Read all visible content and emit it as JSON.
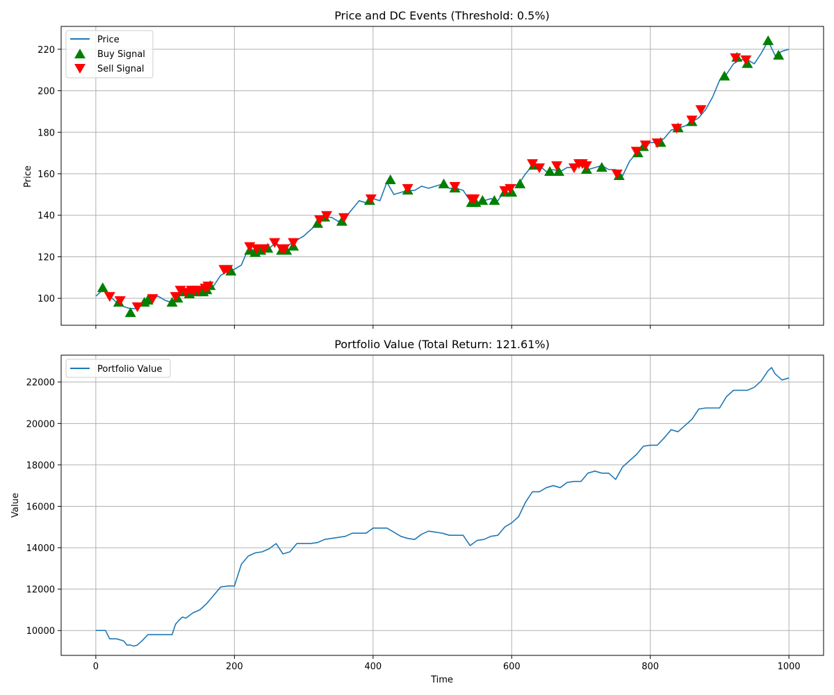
{
  "chart_data": [
    {
      "type": "line",
      "title": "Price and DC Events (Threshold: 0.5%)",
      "xlabel": "",
      "ylabel": "Price",
      "xlim": [
        -50,
        1050
      ],
      "ylim": [
        87,
        231
      ],
      "xticks": [
        0,
        200,
        400,
        600,
        800,
        1000
      ],
      "yticks": [
        100,
        120,
        140,
        160,
        180,
        200,
        220
      ],
      "show_xtick_labels": false,
      "grid": true,
      "legend": "top-left",
      "series": [
        {
          "name": "Price",
          "kind": "line",
          "color": "#1f77b4",
          "x": [
            0,
            10,
            20,
            30,
            40,
            50,
            60,
            70,
            80,
            90,
            100,
            110,
            120,
            130,
            140,
            150,
            160,
            170,
            180,
            190,
            200,
            210,
            220,
            230,
            240,
            250,
            260,
            270,
            280,
            290,
            300,
            310,
            320,
            330,
            340,
            350,
            360,
            370,
            380,
            390,
            400,
            410,
            420,
            430,
            440,
            450,
            460,
            470,
            480,
            490,
            500,
            510,
            520,
            530,
            540,
            550,
            560,
            570,
            580,
            590,
            600,
            610,
            620,
            630,
            640,
            650,
            660,
            670,
            680,
            690,
            700,
            710,
            720,
            730,
            740,
            750,
            760,
            770,
            780,
            790,
            800,
            810,
            820,
            830,
            840,
            850,
            860,
            870,
            880,
            890,
            900,
            910,
            920,
            930,
            940,
            950,
            960,
            970,
            980,
            990,
            1000
          ],
          "y": [
            101,
            104,
            101,
            98,
            96,
            95,
            95,
            98,
            100,
            101,
            99,
            98,
            101,
            103,
            103,
            102,
            104,
            106,
            111,
            113,
            114,
            116,
            124,
            123,
            124,
            124,
            127,
            123,
            126,
            128,
            130,
            133,
            136,
            139,
            139,
            137,
            139,
            143,
            147,
            146,
            148,
            147,
            156,
            150,
            151,
            152,
            152,
            154,
            153,
            154,
            155,
            153,
            153,
            152,
            147,
            146,
            147,
            148,
            147,
            152,
            154,
            155,
            160,
            164,
            164,
            161,
            162,
            161,
            163,
            163,
            164,
            162,
            163,
            164,
            162,
            162,
            159,
            166,
            170,
            173,
            175,
            175,
            177,
            181,
            182,
            183,
            185,
            187,
            191,
            197,
            205,
            208,
            213,
            215,
            215,
            213,
            218,
            224,
            217,
            219,
            220
          ]
        },
        {
          "name": "Buy Signal",
          "kind": "marker",
          "marker": "triangle-up",
          "color": "#008000",
          "x": [
            10,
            33,
            50,
            70,
            75,
            110,
            118,
            125,
            135,
            145,
            155,
            160,
            165,
            195,
            222,
            230,
            238,
            248,
            268,
            275,
            285,
            320,
            330,
            355,
            395,
            425,
            450,
            502,
            518,
            542,
            548,
            558,
            575,
            590,
            600,
            612,
            632,
            655,
            668,
            708,
            730,
            755,
            782,
            790,
            815,
            840,
            860,
            907,
            925,
            940,
            970,
            985
          ],
          "y": [
            105,
            98,
            93,
            98,
            99,
            98,
            100,
            103,
            102,
            103,
            103,
            104,
            106,
            113,
            123,
            122,
            123,
            124,
            123,
            123,
            125,
            136,
            139,
            137,
            147,
            157,
            152,
            155,
            153,
            146,
            146,
            147,
            147,
            151,
            151,
            155,
            164,
            161,
            161,
            162,
            163,
            159,
            170,
            173,
            175,
            182,
            185,
            207,
            216,
            213,
            224,
            217
          ]
        },
        {
          "name": "Sell Signal",
          "kind": "marker",
          "marker": "triangle-down",
          "color": "#ff0000",
          "x": [
            20,
            35,
            60,
            82,
            115,
            122,
            130,
            138,
            142,
            148,
            158,
            162,
            185,
            190,
            222,
            232,
            243,
            258,
            268,
            272,
            285,
            323,
            333,
            358,
            397,
            450,
            518,
            542,
            546,
            590,
            598,
            630,
            640,
            665,
            690,
            697,
            702,
            708,
            752,
            780,
            793,
            810,
            838,
            860,
            873,
            923,
            938
          ],
          "y": [
            101,
            99,
            96,
            100,
            101,
            104,
            103,
            104,
            104,
            104,
            105,
            106,
            114,
            114,
            125,
            124,
            124,
            127,
            124,
            124,
            127,
            138,
            140,
            139,
            148,
            153,
            154,
            148,
            148,
            152,
            153,
            165,
            163,
            164,
            163,
            165,
            165,
            164,
            160,
            171,
            174,
            175,
            182,
            186,
            191,
            216,
            215
          ]
        }
      ]
    },
    {
      "type": "line",
      "title": "Portfolio Value (Total Return: 121.61%)",
      "xlabel": "Time",
      "ylabel": "Value",
      "xlim": [
        -50,
        1050
      ],
      "ylim": [
        8800,
        23300
      ],
      "xticks": [
        0,
        200,
        400,
        600,
        800,
        1000
      ],
      "yticks": [
        10000,
        12000,
        14000,
        16000,
        18000,
        20000,
        22000
      ],
      "show_xtick_labels": true,
      "grid": true,
      "legend": "top-left",
      "series": [
        {
          "name": "Portfolio Value",
          "kind": "line",
          "color": "#1f77b4",
          "x": [
            0,
            10,
            14,
            20,
            30,
            40,
            45,
            50,
            55,
            60,
            68,
            75,
            80,
            90,
            100,
            110,
            115,
            120,
            125,
            130,
            140,
            150,
            160,
            170,
            180,
            190,
            200,
            210,
            220,
            230,
            240,
            250,
            260,
            270,
            280,
            290,
            300,
            310,
            320,
            330,
            340,
            350,
            360,
            370,
            380,
            390,
            400,
            410,
            420,
            430,
            440,
            450,
            460,
            470,
            480,
            490,
            500,
            510,
            520,
            530,
            540,
            550,
            560,
            570,
            580,
            590,
            600,
            610,
            620,
            630,
            640,
            650,
            660,
            670,
            680,
            690,
            700,
            710,
            720,
            730,
            740,
            750,
            760,
            770,
            780,
            790,
            800,
            810,
            820,
            830,
            840,
            850,
            860,
            870,
            880,
            890,
            900,
            910,
            920,
            930,
            940,
            950,
            960,
            970,
            975,
            980,
            990,
            1000
          ],
          "y": [
            10000,
            10000,
            10000,
            9600,
            9600,
            9500,
            9300,
            9300,
            9250,
            9300,
            9550,
            9800,
            9800,
            9800,
            9800,
            9800,
            10300,
            10500,
            10650,
            10600,
            10850,
            11000,
            11300,
            11700,
            12100,
            12150,
            12150,
            13200,
            13600,
            13750,
            13800,
            13950,
            14200,
            13700,
            13800,
            14200,
            14200,
            14200,
            14250,
            14400,
            14450,
            14500,
            14550,
            14700,
            14700,
            14700,
            14950,
            14950,
            14950,
            14750,
            14550,
            14450,
            14400,
            14650,
            14800,
            14750,
            14700,
            14600,
            14600,
            14600,
            14100,
            14350,
            14400,
            14550,
            14600,
            15000,
            15200,
            15500,
            16200,
            16700,
            16700,
            16900,
            17000,
            16900,
            17150,
            17200,
            17200,
            17600,
            17700,
            17600,
            17600,
            17300,
            17900,
            18200,
            18500,
            18900,
            18950,
            18950,
            19300,
            19700,
            19600,
            19900,
            20200,
            20700,
            20750,
            20750,
            20750,
            21300,
            21600,
            21600,
            21600,
            21750,
            22050,
            22550,
            22700,
            22400,
            22100,
            22200
          ]
        }
      ]
    }
  ]
}
